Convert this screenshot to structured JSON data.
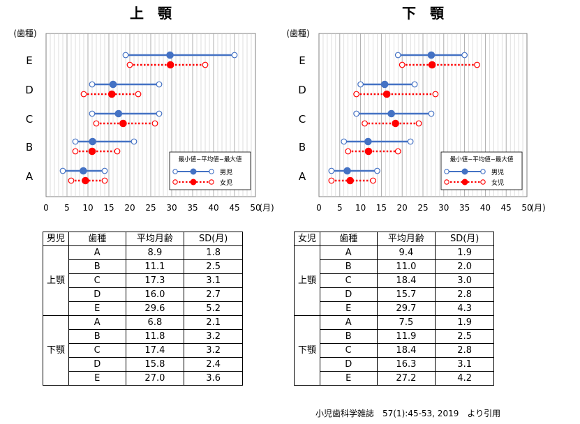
{
  "chart_data": [
    {
      "type": "range-dot",
      "title": "上　顎",
      "y_axis_label": "(歯種)",
      "x_unit": "(月)",
      "categories": [
        "E",
        "D",
        "C",
        "B",
        "A"
      ],
      "x_ticks": [
        "0",
        "5",
        "10",
        "15",
        "20",
        "25",
        "30",
        "35",
        "40",
        "45",
        "50"
      ],
      "xlim": [
        0,
        50
      ],
      "legend_title": "最小値−平均値−最大値",
      "series": [
        {
          "name": "男児",
          "color": "#4472c4",
          "style": "solid",
          "points": [
            {
              "tooth": "E",
              "min": 19,
              "mean": 29.6,
              "max": 45
            },
            {
              "tooth": "D",
              "min": 11,
              "mean": 16.0,
              "max": 27
            },
            {
              "tooth": "C",
              "min": 11,
              "mean": 17.3,
              "max": 27
            },
            {
              "tooth": "B",
              "min": 7,
              "mean": 11.1,
              "max": 21
            },
            {
              "tooth": "A",
              "min": 4,
              "mean": 8.9,
              "max": 14
            }
          ]
        },
        {
          "name": "女児",
          "color": "#ff0000",
          "style": "dotted",
          "points": [
            {
              "tooth": "E",
              "min": 20,
              "mean": 29.7,
              "max": 38
            },
            {
              "tooth": "D",
              "min": 9,
              "mean": 15.7,
              "max": 22
            },
            {
              "tooth": "C",
              "min": 12,
              "mean": 18.4,
              "max": 26
            },
            {
              "tooth": "B",
              "min": 7,
              "mean": 11.0,
              "max": 17
            },
            {
              "tooth": "A",
              "min": 6,
              "mean": 9.4,
              "max": 14
            }
          ]
        }
      ]
    },
    {
      "type": "range-dot",
      "title": "下　顎",
      "y_axis_label": "(歯種)",
      "x_unit": "(月)",
      "categories": [
        "E",
        "D",
        "C",
        "B",
        "A"
      ],
      "x_ticks": [
        "0",
        "5",
        "10",
        "15",
        "20",
        "25",
        "30",
        "35",
        "40",
        "45",
        "50"
      ],
      "xlim": [
        0,
        50
      ],
      "legend_title": "最小値−平均値−最大値",
      "series": [
        {
          "name": "男児",
          "color": "#4472c4",
          "style": "solid",
          "points": [
            {
              "tooth": "E",
              "min": 19,
              "mean": 27.0,
              "max": 35
            },
            {
              "tooth": "D",
              "min": 10,
              "mean": 15.8,
              "max": 23
            },
            {
              "tooth": "C",
              "min": 9,
              "mean": 17.4,
              "max": 27
            },
            {
              "tooth": "B",
              "min": 6,
              "mean": 11.8,
              "max": 22
            },
            {
              "tooth": "A",
              "min": 3,
              "mean": 6.8,
              "max": 14
            }
          ]
        },
        {
          "name": "女児",
          "color": "#ff0000",
          "style": "dotted",
          "points": [
            {
              "tooth": "E",
              "min": 20,
              "mean": 27.2,
              "max": 38
            },
            {
              "tooth": "D",
              "min": 9,
              "mean": 16.3,
              "max": 28
            },
            {
              "tooth": "C",
              "min": 11,
              "mean": 18.4,
              "max": 24
            },
            {
              "tooth": "B",
              "min": 7,
              "mean": 11.9,
              "max": 19
            },
            {
              "tooth": "A",
              "min": 3,
              "mean": 7.5,
              "max": 13
            }
          ]
        }
      ]
    }
  ],
  "tables": [
    {
      "sex": "男児",
      "headers": [
        "歯種",
        "平均月齢",
        "SD(月)"
      ],
      "groups": [
        {
          "jaw": "上顎",
          "rows": [
            [
              "A",
              "8.9",
              "1.8"
            ],
            [
              "B",
              "11.1",
              "2.5"
            ],
            [
              "C",
              "17.3",
              "3.1"
            ],
            [
              "D",
              "16.0",
              "2.7"
            ],
            [
              "E",
              "29.6",
              "5.2"
            ]
          ]
        },
        {
          "jaw": "下顎",
          "rows": [
            [
              "A",
              "6.8",
              "2.1"
            ],
            [
              "B",
              "11.8",
              "3.2"
            ],
            [
              "C",
              "17.4",
              "3.2"
            ],
            [
              "D",
              "15.8",
              "2.4"
            ],
            [
              "E",
              "27.0",
              "3.6"
            ]
          ]
        }
      ]
    },
    {
      "sex": "女児",
      "headers": [
        "歯種",
        "平均月齢",
        "SD(月)"
      ],
      "groups": [
        {
          "jaw": "上顎",
          "rows": [
            [
              "A",
              "9.4",
              "1.9"
            ],
            [
              "B",
              "11.0",
              "2.0"
            ],
            [
              "C",
              "18.4",
              "3.0"
            ],
            [
              "D",
              "15.7",
              "2.8"
            ],
            [
              "E",
              "29.7",
              "4.3"
            ]
          ]
        },
        {
          "jaw": "下顎",
          "rows": [
            [
              "A",
              "7.5",
              "1.9"
            ],
            [
              "B",
              "11.9",
              "2.5"
            ],
            [
              "C",
              "18.4",
              "2.8"
            ],
            [
              "D",
              "16.3",
              "3.1"
            ],
            [
              "E",
              "27.2",
              "4.2"
            ]
          ]
        }
      ]
    }
  ],
  "source_caption": "小児歯科学雑誌　57(1):45-53, 2019　より引用"
}
